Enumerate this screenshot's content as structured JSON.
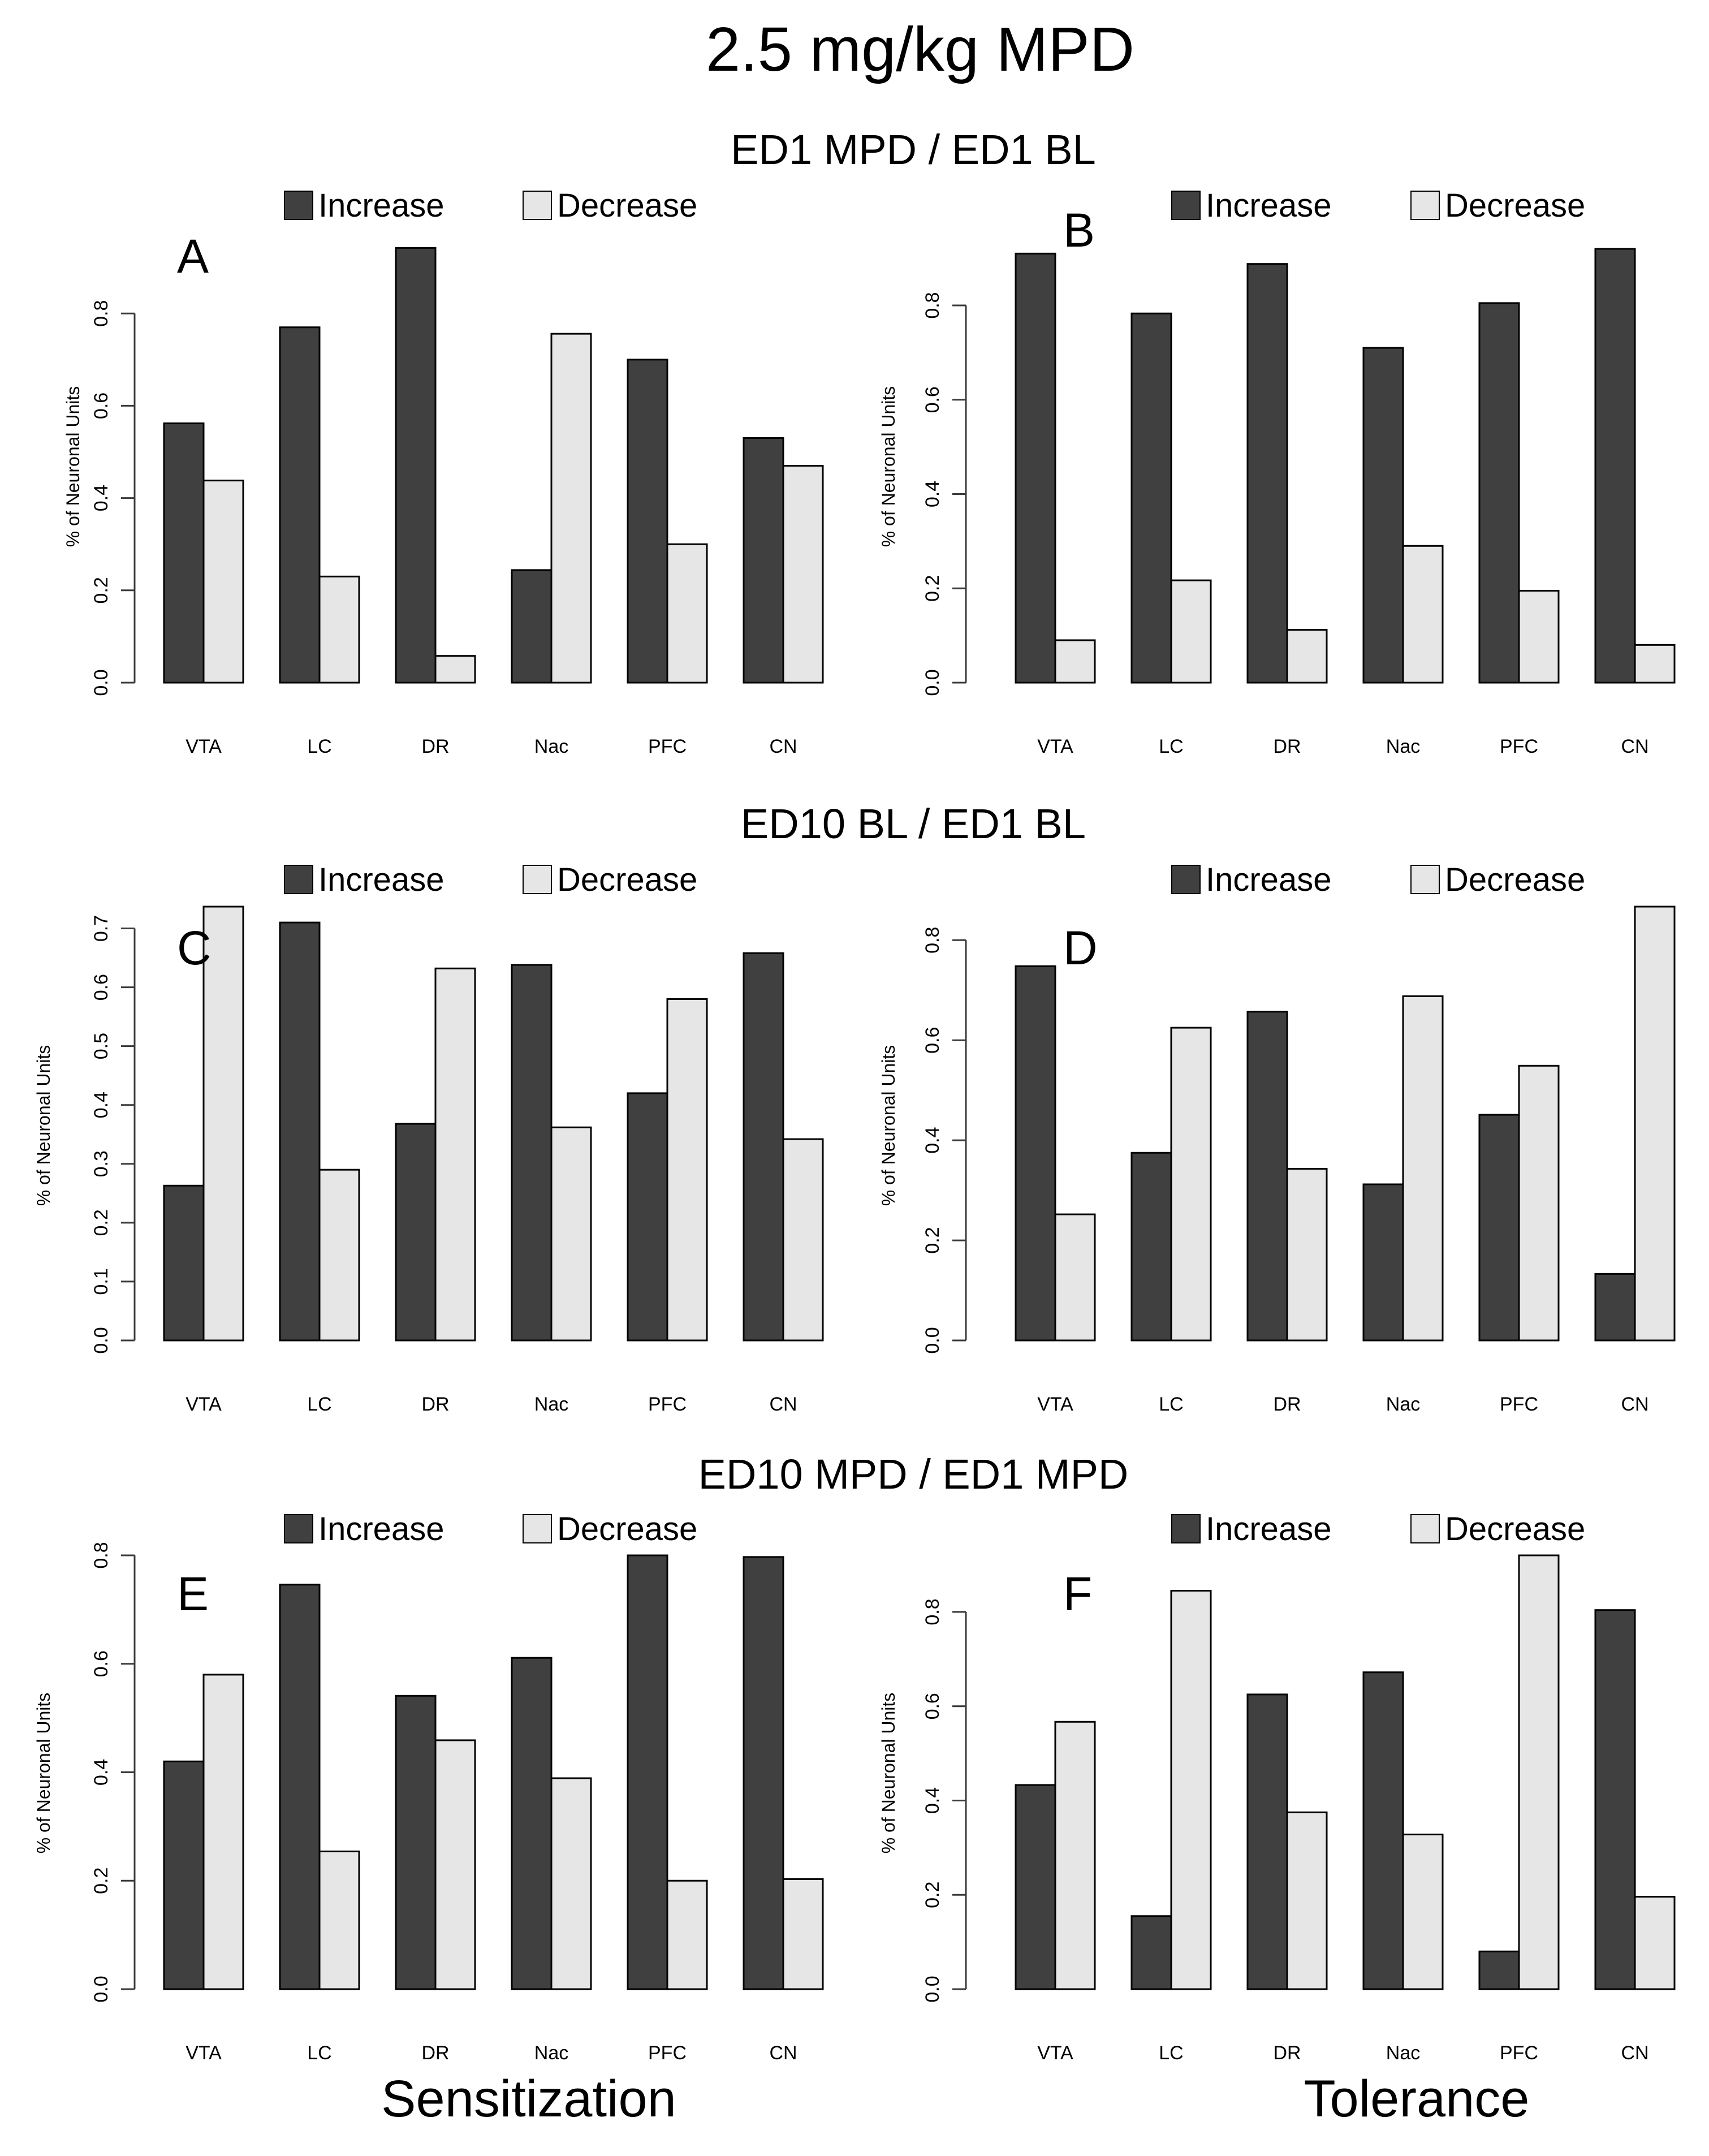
{
  "title": "2.5 mg/kg MPD",
  "row_titles": [
    "ED1 MPD / ED1 BL",
    "ED10 BL / ED1 BL",
    "ED10 MPD / ED1 MPD"
  ],
  "column_labels": [
    "Sensitization",
    "Tolerance"
  ],
  "colors": {
    "increase": "#404040",
    "decrease": "#e6e6e6",
    "outline": "#000000",
    "axis": "#3a3a3a"
  },
  "legend": [
    "Increase",
    "Decrease"
  ],
  "chart_data": [
    {
      "panel": "A",
      "type": "bar",
      "categories": [
        "VTA",
        "LC",
        "DR",
        "Nac",
        "PFC",
        "CN"
      ],
      "series": [
        {
          "name": "Increase",
          "values": [
            0.562,
            0.77,
            0.942,
            0.244,
            0.7,
            0.53
          ]
        },
        {
          "name": "Decrease",
          "values": [
            0.438,
            0.23,
            0.058,
            0.756,
            0.3,
            0.47
          ]
        }
      ],
      "ylabel": "% of Neuronal Units",
      "ylim": [
        0,
        0.94
      ],
      "yticks": [
        0.0,
        0.2,
        0.4,
        0.6,
        0.8
      ],
      "legend_position": "top"
    },
    {
      "panel": "B",
      "type": "bar",
      "categories": [
        "VTA",
        "LC",
        "DR",
        "Nac",
        "PFC",
        "CN"
      ],
      "series": [
        {
          "name": "Increase",
          "values": [
            0.91,
            0.783,
            0.888,
            0.71,
            0.805,
            0.92
          ]
        },
        {
          "name": "Decrease",
          "values": [
            0.09,
            0.217,
            0.112,
            0.29,
            0.195,
            0.08
          ]
        }
      ],
      "ylabel": "% of Neuronal Units",
      "ylim": [
        0,
        0.92
      ],
      "yticks": [
        0.0,
        0.2,
        0.4,
        0.6,
        0.8
      ],
      "legend_position": "top"
    },
    {
      "panel": "C",
      "type": "bar",
      "categories": [
        "VTA",
        "LC",
        "DR",
        "Nac",
        "PFC",
        "CN"
      ],
      "series": [
        {
          "name": "Increase",
          "values": [
            0.263,
            0.71,
            0.368,
            0.638,
            0.42,
            0.658
          ]
        },
        {
          "name": "Decrease",
          "values": [
            0.737,
            0.29,
            0.632,
            0.362,
            0.58,
            0.342
          ]
        }
      ],
      "ylabel": "% of Neuronal Units",
      "ylim": [
        0,
        0.737
      ],
      "yticks": [
        0.0,
        0.1,
        0.2,
        0.3,
        0.4,
        0.5,
        0.6,
        0.7
      ],
      "legend_position": "top"
    },
    {
      "panel": "D",
      "type": "bar",
      "categories": [
        "VTA",
        "LC",
        "DR",
        "Nac",
        "PFC",
        "CN"
      ],
      "series": [
        {
          "name": "Increase",
          "values": [
            0.748,
            0.375,
            0.657,
            0.312,
            0.451,
            0.133
          ]
        },
        {
          "name": "Decrease",
          "values": [
            0.252,
            0.625,
            0.343,
            0.688,
            0.549,
            0.867
          ]
        }
      ],
      "ylabel": "% of Neuronal Units",
      "ylim": [
        0,
        0.867
      ],
      "yticks": [
        0.0,
        0.2,
        0.4,
        0.6,
        0.8
      ],
      "legend_position": "top"
    },
    {
      "panel": "E",
      "type": "bar",
      "categories": [
        "VTA",
        "LC",
        "DR",
        "Nac",
        "PFC",
        "CN"
      ],
      "series": [
        {
          "name": "Increase",
          "values": [
            0.42,
            0.746,
            0.541,
            0.611,
            0.8,
            0.797
          ]
        },
        {
          "name": "Decrease",
          "values": [
            0.58,
            0.254,
            0.459,
            0.389,
            0.2,
            0.203
          ]
        }
      ],
      "ylabel": "% of Neuronal Units",
      "ylim": [
        0,
        0.8
      ],
      "yticks": [
        0.0,
        0.2,
        0.4,
        0.6,
        0.8
      ],
      "legend_position": "top"
    },
    {
      "panel": "F",
      "type": "bar",
      "categories": [
        "VTA",
        "LC",
        "DR",
        "Nac",
        "PFC",
        "CN"
      ],
      "series": [
        {
          "name": "Increase",
          "values": [
            0.433,
            0.155,
            0.625,
            0.672,
            0.08,
            0.804
          ]
        },
        {
          "name": "Decrease",
          "values": [
            0.567,
            0.845,
            0.375,
            0.328,
            0.92,
            0.196
          ]
        }
      ],
      "ylabel": "% of Neuronal Units",
      "ylim": [
        0,
        0.92
      ],
      "yticks": [
        0.0,
        0.2,
        0.4,
        0.6,
        0.8
      ],
      "legend_position": "top"
    }
  ]
}
